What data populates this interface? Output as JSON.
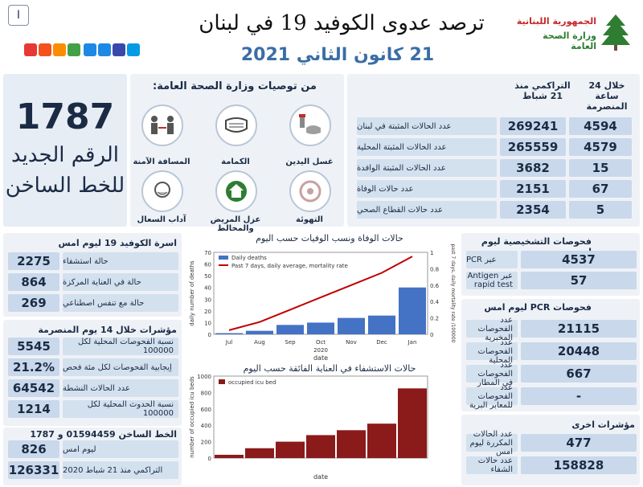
{
  "header": {
    "page_badge": "I",
    "title": "ترصد عدوى الكوفيد 19 في لبنان",
    "date": "21 كانون الثاني 2021",
    "ministry_line1": "الجمهورية اللبنانية",
    "ministry_line2": "وزارة الصحة العامة",
    "badge_colors": [
      "#e53935",
      "#f4511e",
      "#fb8c00",
      "#43a047",
      "#1e88e5",
      "#1e88e5",
      "#3949ab",
      "#039be5"
    ]
  },
  "hotline_box": {
    "number": "1787",
    "line1": "الرقم الجديد",
    "line2": "للخط الساخن"
  },
  "recommendations": {
    "title": "من توصيات وزارة الصحة العامة:",
    "items": [
      {
        "label": "غسل اليدين",
        "icon": "hand-wash-icon"
      },
      {
        "label": "الكمامة",
        "icon": "mask-icon"
      },
      {
        "label": "المسافة الآمنة",
        "icon": "distance-icon"
      },
      {
        "label": "التهوئة",
        "icon": "ventilation-icon"
      },
      {
        "label": "عزل المريض والمخالط",
        "icon": "isolation-icon"
      },
      {
        "label": "آداب السعال",
        "icon": "cough-icon"
      }
    ]
  },
  "summary_table": {
    "col_24h": "خلال 24 ساعة المنصرمة",
    "col_total": "التراكمي منذ 21 شباط",
    "rows": [
      {
        "label": "عدد الحالات المثبتة في لبنان",
        "h24": "4594",
        "total": "269241"
      },
      {
        "label": "عدد الحالات المثبتة المحلية",
        "h24": "4579",
        "total": "265559"
      },
      {
        "label": "عدد الحالات المثبتة الوافدة",
        "h24": "15",
        "total": "3682"
      },
      {
        "label": "عدد حالات الوفاة",
        "h24": "67",
        "total": "2151"
      },
      {
        "label": "عدد حالات القطاع الصحي",
        "h24": "5",
        "total": "2354"
      }
    ]
  },
  "beds": {
    "title": "اسرة الكوفيد 19 ليوم امس",
    "rows": [
      {
        "value": "2275",
        "label": "حالة استشفاء"
      },
      {
        "value": "864",
        "label": "حالة في العناية المركزة"
      },
      {
        "value": "269",
        "label": "حالة مع تنفس اصطناعي"
      }
    ]
  },
  "indicators14": {
    "title": "مؤشرات خلال 14 يوم المنصرمة",
    "rows": [
      {
        "value": "5545",
        "label": "نسبة الفحوصات المحلية لكل 100000"
      },
      {
        "value": "21.2%",
        "label": "إيجابية الفحوصات لكل مئة فحص"
      },
      {
        "value": "64542",
        "label": "عدد الحالات النشطة"
      },
      {
        "value": "1214",
        "label": "نسبة الحدوث المحلية لكل 100000"
      }
    ]
  },
  "hotline_calls": {
    "title": "الخط الساخن 01594459 و 1787",
    "rows": [
      {
        "value": "826",
        "label": "ليوم امس"
      },
      {
        "value": "126331",
        "label": "التراكمي منذ 21 شباط 2020"
      }
    ]
  },
  "diagnostic_tests": {
    "title": "فحوصات التشخيصية ليوم امس",
    "rows": [
      {
        "value": "4537",
        "label": "عبر PCR"
      },
      {
        "value": "57",
        "label": "عبر Antigen rapid test"
      }
    ]
  },
  "pcr_tests": {
    "title": "فحوصات PCR ليوم امس",
    "rows": [
      {
        "value": "21115",
        "label": "عدد الفحوصات المخبرية"
      },
      {
        "value": "20448",
        "label": "عدد الفحوصات المحلية"
      },
      {
        "value": "667",
        "label": "عدد الفحوصات في المطار"
      },
      {
        "value": "-",
        "label": "عدد الفحوصات للمعابر البرية"
      }
    ]
  },
  "other_indicators": {
    "title": "مؤشرات اخرى",
    "rows": [
      {
        "value": "477",
        "label": "عدد الحالات المكررة ليوم امس"
      },
      {
        "value": "158828",
        "label": "عدد حالات الشفاء"
      }
    ]
  },
  "chart_data": [
    {
      "type": "bar",
      "title": "حالات الوفاة ونسب الوفيات حسب اليوم",
      "xlabel": "date",
      "ylabel": "daily number of deaths",
      "y2label": "past 7 days, daily mortality rate /100000",
      "legend": [
        "Daily deaths",
        "Past 7 days, daily average, mortality rate"
      ],
      "legend_position": "top-left",
      "x_ticks": [
        "Jul",
        "Aug",
        "Sep",
        "Oct",
        "Nov",
        "Dec",
        "Jan"
      ],
      "x_group": "2020",
      "ylim": [
        0,
        70
      ],
      "y_ticks": [
        0,
        10,
        20,
        30,
        40,
        50,
        60,
        70
      ],
      "y2lim": [
        0,
        1
      ],
      "y2_ticks": [
        0,
        0.2,
        0.4,
        0.6,
        0.8,
        1
      ],
      "monthly_avg_deaths": [
        1,
        3,
        8,
        10,
        14,
        16,
        40
      ],
      "monthly_avg_rate": [
        0.05,
        0.15,
        0.3,
        0.45,
        0.6,
        0.75,
        0.95
      ],
      "bar_color": "#4472c4",
      "line_color": "#c00000"
    },
    {
      "type": "bar",
      "title": "حالات الاستشفاء في العناية الفائقة حسب اليوم",
      "xlabel": "date",
      "ylabel": "number of occupied icu beds",
      "legend": [
        "occupied icu bed"
      ],
      "legend_position": "top-left",
      "ylim": [
        0,
        1000
      ],
      "y_ticks": [
        0,
        200,
        400,
        600,
        800,
        1000
      ],
      "monthly_occupied_beds": [
        40,
        120,
        200,
        280,
        340,
        420,
        850
      ],
      "bar_color": "#8b1a1a"
    }
  ]
}
